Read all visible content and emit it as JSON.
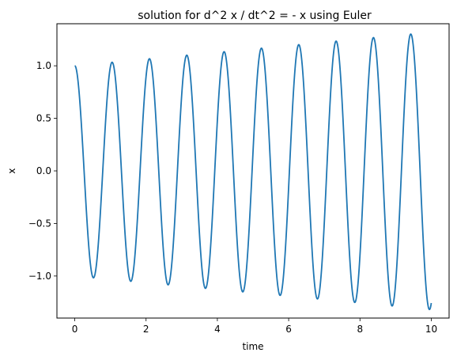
{
  "chart_data": {
    "type": "line",
    "title": "solution for d^2 x / dt^2 = - x using Euler",
    "xlabel": "time",
    "ylabel": "x",
    "xlim": [
      -0.5,
      10.5
    ],
    "ylim": [
      -1.4,
      1.4
    ],
    "xticks": [
      0,
      2,
      4,
      6,
      8,
      10
    ],
    "yticks": [
      -1.0,
      -0.5,
      0.0,
      0.5,
      1.0
    ],
    "xtick_labels": [
      "0",
      "2",
      "4",
      "6",
      "8",
      "10"
    ],
    "ytick_labels": [
      "−1.0",
      "−0.5",
      "0.0",
      "0.5",
      "1.0"
    ],
    "grid": false,
    "series": [
      {
        "color": "#1f77b4",
        "model": "x = (1 + 0.032·t)·cos(6·t)",
        "t_range": [
          0,
          10
        ],
        "amplitude_growth_per_unit_time": 0.032,
        "angular_frequency": 6
      }
    ]
  }
}
